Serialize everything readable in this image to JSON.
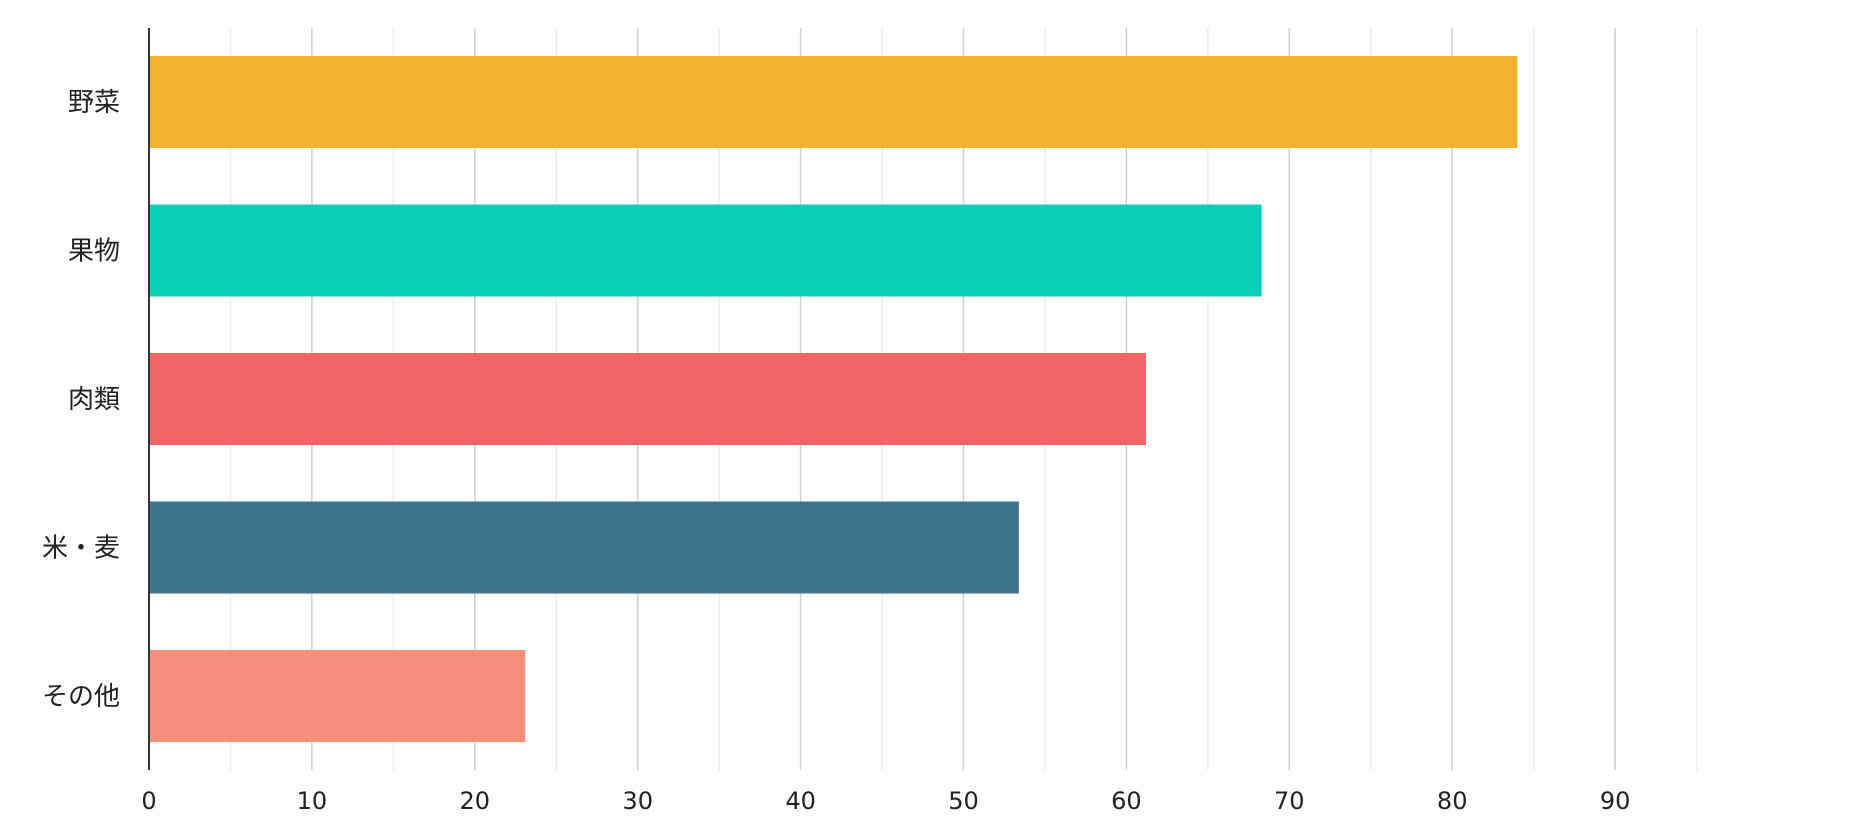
{
  "chart_data": {
    "type": "bar",
    "orientation": "horizontal",
    "title": "",
    "xlabel": "",
    "ylabel": "",
    "categories": [
      "野菜",
      "果物",
      "肉類",
      "米・麦",
      "その他"
    ],
    "values": [
      84,
      68.3,
      61.2,
      53.4,
      23.1
    ],
    "colors": [
      "#F2B22E",
      "#0BD0B8",
      "#F16566",
      "#3E758C",
      "#F58D7B"
    ],
    "xlim": [
      0,
      105
    ],
    "x_ticks": [
      0,
      10,
      20,
      30,
      40,
      50,
      60,
      70,
      80,
      90
    ],
    "x_tick_labels": [
      "0",
      "10",
      "20",
      "30",
      "40",
      "50",
      "60",
      "70",
      "80",
      "90"
    ],
    "minor_grid_step": 5,
    "grid": true,
    "legend": "none"
  }
}
